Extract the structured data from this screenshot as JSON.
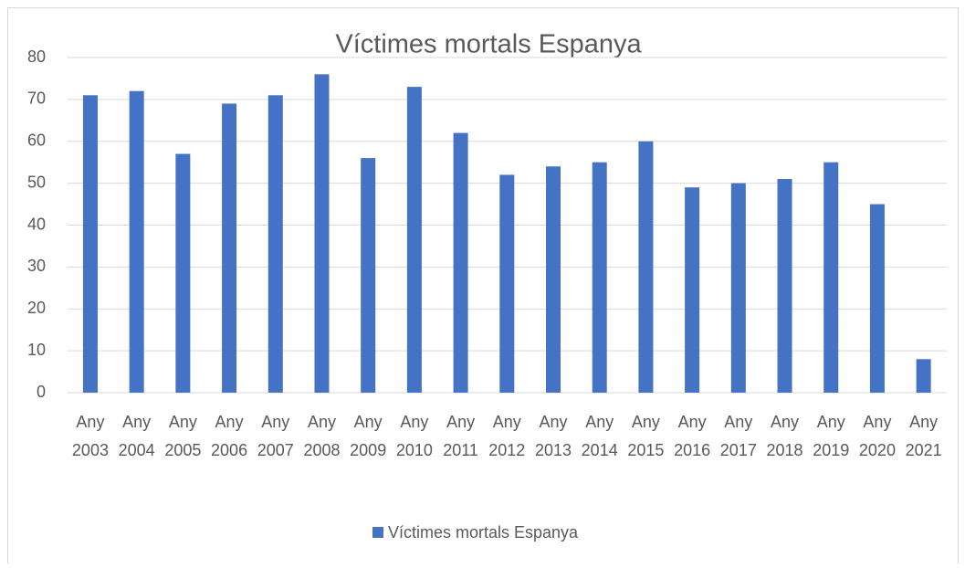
{
  "chart_data": {
    "type": "bar",
    "title": "Víctimes mortals Espanya",
    "categories": [
      "Any 2003",
      "Any 2004",
      "Any 2005",
      "Any 2006",
      "Any 2007",
      "Any 2008",
      "Any 2009",
      "Any 2010",
      "Any 2011",
      "Any 2012",
      "Any 2013",
      "Any 2014",
      "Any 2015",
      "Any 2016",
      "Any 2017",
      "Any 2018",
      "Any 2019",
      "Any 2020",
      "Any 2021"
    ],
    "series": [
      {
        "name": "Víctimes mortals Espanya",
        "color": "#4472c4",
        "values": [
          71,
          72,
          57,
          69,
          71,
          76,
          56,
          73,
          62,
          52,
          54,
          55,
          60,
          49,
          50,
          51,
          55,
          45,
          8
        ]
      }
    ],
    "ylim": [
      0,
      80
    ],
    "yticks": [
      0,
      10,
      20,
      30,
      40,
      50,
      60,
      70,
      80
    ],
    "grid": true,
    "legend": "bottom"
  }
}
